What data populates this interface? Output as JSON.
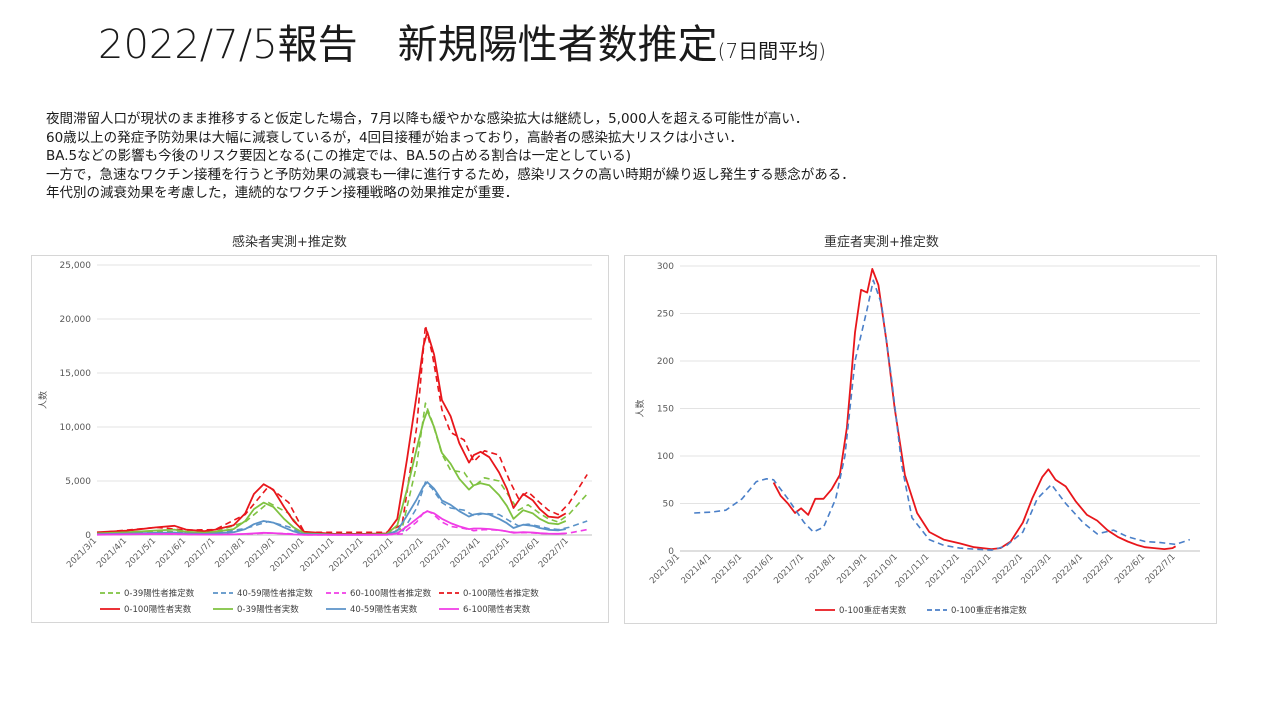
{
  "header": {
    "title": "2022/7/5報告　新規陽性者数推定",
    "title_suffix": "(7日間平均)"
  },
  "description": [
    "夜間滞留人口が現状のまま推移すると仮定した場合，7月以降も緩やかな感染拡大は継続し，5,000人を超える可能性が高い．",
    "60歳以上の発症予防効果は大幅に減衰しているが，4回目接種が始まっており，高齢者の感染拡大リスクは小さい．",
    "BA.5などの影響も今後のリスク要因となる(この推定では、BA.5の占める割合は一定としている)",
    "一方で，急速なワクチン接種を行うと予防効果の減衰も一律に進行するため，感染リスクの高い時期が繰り返し発生する懸念がある．",
    "年代別の減衰効果を考慮した，連続的なワクチン接種戦略の効果推定が重要．"
  ],
  "chart_data": [
    {
      "type": "line",
      "title": "感染者実測+推定数",
      "ylabel": "人数",
      "xlabel": "",
      "ylim": [
        0,
        25000
      ],
      "yticks": [
        "0",
        "5,000",
        "10,000",
        "15,000",
        "20,000",
        "25,000"
      ],
      "ytick_values": [
        0,
        5000,
        10000,
        15000,
        20000,
        25000
      ],
      "xticks": [
        "2021/3/1",
        "2021/4/1",
        "2021/5/1",
        "2021/6/1",
        "2021/7/1",
        "2021/8/1",
        "2021/9/1",
        "2021/10/1",
        "2021/11/1",
        "2021/12/1",
        "2022/1/1",
        "2022/2/1",
        "2022/3/1",
        "2022/4/1",
        "2022/5/1",
        "2022/6/1",
        "2022/7/1"
      ],
      "grid": true,
      "legend_position": "bottom",
      "colors": {
        "0-39": "#7fc241",
        "40-59": "#5b93c8",
        "60-100": "#f03ce6",
        "0-100": "#e8161b"
      },
      "series": [
        {
          "name": "0-39陽性者推定数",
          "color": "#7fc241",
          "dashed": true,
          "x": [
            "2021/3/1",
            "2021/5/1",
            "2021/6/1",
            "2021/7/1",
            "2021/8/1",
            "2021/8/25",
            "2021/9/15",
            "2021/10/1",
            "2021/12/25",
            "2022/1/10",
            "2022/1/25",
            "2022/2/3",
            "2022/2/10",
            "2022/2/20",
            "2022/3/1",
            "2022/3/15",
            "2022/3/25",
            "2022/4/5",
            "2022/4/20",
            "2022/5/1",
            "2022/5/10",
            "2022/5/20",
            "2022/6/1",
            "2022/6/10",
            "2022/6/20",
            "2022/7/1",
            "2022/7/20"
          ],
          "y": [
            120,
            350,
            250,
            300,
            1200,
            3000,
            2000,
            150,
            150,
            600,
            6500,
            12200,
            10500,
            7500,
            6000,
            5800,
            4500,
            5300,
            5000,
            3500,
            2300,
            2800,
            2000,
            1500,
            1200,
            1900,
            3800
          ]
        },
        {
          "name": "40-59陽性者推定数",
          "color": "#5b93c8",
          "dashed": true,
          "x": [
            "2021/3/1",
            "2021/5/1",
            "2021/6/1",
            "2021/7/1",
            "2021/8/1",
            "2021/8/25",
            "2021/9/15",
            "2021/10/1",
            "2021/12/25",
            "2022/1/10",
            "2022/1/25",
            "2022/2/3",
            "2022/2/10",
            "2022/2/20",
            "2022/3/1",
            "2022/3/15",
            "2022/3/25",
            "2022/4/5",
            "2022/4/20",
            "2022/5/1",
            "2022/5/10",
            "2022/5/20",
            "2022/6/1",
            "2022/6/10",
            "2022/6/20",
            "2022/7/1",
            "2022/7/20"
          ],
          "y": [
            60,
            180,
            140,
            170,
            600,
            1250,
            750,
            60,
            60,
            250,
            2500,
            4900,
            4300,
            3000,
            2500,
            2300,
            1800,
            2000,
            1900,
            1300,
            850,
            1000,
            800,
            600,
            500,
            700,
            1300
          ]
        },
        {
          "name": "60-100陽性者推定数",
          "color": "#f03ce6",
          "dashed": true,
          "x": [
            "2021/3/1",
            "2021/5/1",
            "2021/6/1",
            "2021/7/1",
            "2021/8/1",
            "2021/8/25",
            "2021/9/15",
            "2021/10/1",
            "2021/12/25",
            "2022/1/10",
            "2022/1/25",
            "2022/2/3",
            "2022/2/10",
            "2022/2/20",
            "2022/3/1",
            "2022/3/15",
            "2022/3/25",
            "2022/4/5",
            "2022/4/20",
            "2022/5/1",
            "2022/5/10",
            "2022/5/20",
            "2022/6/1",
            "2022/6/10",
            "2022/6/20",
            "2022/7/1",
            "2022/7/20"
          ],
          "y": [
            40,
            90,
            60,
            50,
            80,
            180,
            120,
            20,
            20,
            100,
            1200,
            2300,
            2000,
            1200,
            800,
            600,
            400,
            500,
            450,
            300,
            200,
            220,
            150,
            120,
            100,
            180,
            500
          ]
        },
        {
          "name": "0-100陽性者推定数",
          "color": "#e8161b",
          "dashed": true,
          "x": [
            "2021/3/1",
            "2021/5/1",
            "2021/6/1",
            "2021/7/1",
            "2021/8/1",
            "2021/8/25",
            "2021/9/15",
            "2021/10/1",
            "2021/12/25",
            "2022/1/10",
            "2022/1/25",
            "2022/2/3",
            "2022/2/10",
            "2022/2/20",
            "2022/3/1",
            "2022/3/15",
            "2022/3/25",
            "2022/4/5",
            "2022/4/20",
            "2022/5/1",
            "2022/5/10",
            "2022/5/20",
            "2022/6/1",
            "2022/6/10",
            "2022/6/20",
            "2022/7/1",
            "2022/7/20"
          ],
          "y": [
            200,
            700,
            450,
            500,
            1900,
            4500,
            3000,
            250,
            250,
            950,
            10000,
            19400,
            16800,
            11600,
            9500,
            8800,
            6800,
            7800,
            7400,
            5000,
            3400,
            4000,
            3000,
            2300,
            1900,
            2900,
            5600
          ]
        },
        {
          "name": "0-100陽性者実数",
          "color": "#e8161b",
          "dashed": false,
          "x": [
            "2021/3/1",
            "2021/4/1",
            "2021/5/1",
            "2021/5/20",
            "2021/6/1",
            "2021/6/20",
            "2021/7/1",
            "2021/7/20",
            "2021/8/1",
            "2021/8/10",
            "2021/8/20",
            "2021/8/30",
            "2021/9/10",
            "2021/9/20",
            "2021/10/1",
            "2021/11/1",
            "2021/12/1",
            "2021/12/25",
            "2022/1/5",
            "2022/1/15",
            "2022/1/25",
            "2022/2/1",
            "2022/2/5",
            "2022/2/12",
            "2022/2/20",
            "2022/3/1",
            "2022/3/10",
            "2022/3/20",
            "2022/3/25",
            "2022/4/1",
            "2022/4/10",
            "2022/4/20",
            "2022/4/28",
            "2022/5/5",
            "2022/5/15",
            "2022/5/25",
            "2022/6/1",
            "2022/6/10",
            "2022/6/20",
            "2022/6/28"
          ],
          "y": [
            250,
            400,
            700,
            850,
            500,
            350,
            500,
            900,
            2000,
            3800,
            4700,
            4200,
            2600,
            1300,
            300,
            100,
            100,
            150,
            1500,
            7000,
            13000,
            17500,
            18800,
            16700,
            12500,
            11000,
            8500,
            6700,
            7400,
            7700,
            7200,
            5800,
            4300,
            2500,
            3800,
            3200,
            2400,
            1700,
            1600,
            2000
          ]
        },
        {
          "name": "0-39陽性者実数",
          "color": "#7fc241",
          "dashed": false,
          "x": [
            "2021/3/1",
            "2021/4/1",
            "2021/5/1",
            "2021/5/20",
            "2021/6/1",
            "2021/6/20",
            "2021/7/1",
            "2021/7/20",
            "2021/8/1",
            "2021/8/10",
            "2021/8/20",
            "2021/8/30",
            "2021/9/10",
            "2021/9/20",
            "2021/10/1",
            "2021/11/1",
            "2021/12/1",
            "2021/12/25",
            "2022/1/5",
            "2022/1/15",
            "2022/1/25",
            "2022/2/1",
            "2022/2/5",
            "2022/2/12",
            "2022/2/20",
            "2022/3/1",
            "2022/3/10",
            "2022/3/20",
            "2022/3/25",
            "2022/4/1",
            "2022/4/10",
            "2022/4/20",
            "2022/4/28",
            "2022/5/5",
            "2022/5/15",
            "2022/5/25",
            "2022/6/1",
            "2022/6/10",
            "2022/6/20",
            "2022/6/28"
          ],
          "y": [
            150,
            250,
            420,
            500,
            300,
            200,
            300,
            550,
            1300,
            2400,
            3000,
            2600,
            1500,
            700,
            150,
            50,
            50,
            80,
            900,
            4200,
            8000,
            10500,
            11500,
            10000,
            7600,
            6600,
            5200,
            4200,
            4600,
            4800,
            4600,
            3700,
            2700,
            1500,
            2300,
            2000,
            1500,
            1100,
            1000,
            1300
          ]
        },
        {
          "name": "40-59陽性者実数",
          "color": "#5b93c8",
          "dashed": false,
          "x": [
            "2021/3/1",
            "2021/4/1",
            "2021/5/1",
            "2021/5/20",
            "2021/6/1",
            "2021/6/20",
            "2021/7/1",
            "2021/7/20",
            "2021/8/1",
            "2021/8/10",
            "2021/8/20",
            "2021/8/30",
            "2021/9/10",
            "2021/9/20",
            "2021/10/1",
            "2021/11/1",
            "2021/12/1",
            "2021/12/25",
            "2022/1/5",
            "2022/1/15",
            "2022/1/25",
            "2022/2/1",
            "2022/2/5",
            "2022/2/12",
            "2022/2/20",
            "2022/3/1",
            "2022/3/10",
            "2022/3/20",
            "2022/3/25",
            "2022/4/1",
            "2022/4/10",
            "2022/4/20",
            "2022/4/28",
            "2022/5/5",
            "2022/5/15",
            "2022/5/25",
            "2022/6/1",
            "2022/6/10",
            "2022/6/20",
            "2022/6/28"
          ],
          "y": [
            70,
            120,
            200,
            230,
            150,
            100,
            150,
            260,
            550,
            1000,
            1300,
            1150,
            700,
            330,
            70,
            25,
            25,
            40,
            400,
            1800,
            3300,
            4500,
            4900,
            4300,
            3200,
            2800,
            2200,
            1700,
            1900,
            2000,
            1900,
            1500,
            1100,
            650,
            950,
            850,
            650,
            480,
            430,
            550
          ]
        },
        {
          "name": "6-100陽性者実数",
          "color": "#f03ce6",
          "dashed": false,
          "x": [
            "2021/3/1",
            "2021/4/1",
            "2021/5/1",
            "2021/5/20",
            "2021/6/1",
            "2021/6/20",
            "2021/7/1",
            "2021/7/20",
            "2021/8/1",
            "2021/8/10",
            "2021/8/20",
            "2021/8/30",
            "2021/9/10",
            "2021/9/20",
            "2021/10/1",
            "2021/11/1",
            "2021/12/1",
            "2021/12/25",
            "2022/1/5",
            "2022/1/15",
            "2022/1/25",
            "2022/2/1",
            "2022/2/5",
            "2022/2/12",
            "2022/2/20",
            "2022/3/1",
            "2022/3/10",
            "2022/3/20",
            "2022/3/25",
            "2022/4/1",
            "2022/4/10",
            "2022/4/20",
            "2022/4/28",
            "2022/5/5",
            "2022/5/15",
            "2022/5/25",
            "2022/6/1",
            "2022/6/10",
            "2022/6/20",
            "2022/6/28"
          ],
          "y": [
            30,
            60,
            90,
            100,
            60,
            40,
            40,
            60,
            100,
            150,
            200,
            180,
            110,
            60,
            15,
            5,
            5,
            10,
            150,
            800,
            1500,
            2000,
            2200,
            2000,
            1500,
            1100,
            800,
            550,
            600,
            600,
            560,
            450,
            330,
            200,
            260,
            230,
            170,
            130,
            110,
            150
          ]
        }
      ]
    },
    {
      "type": "line",
      "title": "重症者実測+推定数",
      "ylabel": "人数",
      "xlabel": "",
      "ylim": [
        0,
        300
      ],
      "yticks": [
        "0",
        "50",
        "100",
        "150",
        "200",
        "250",
        "300"
      ],
      "ytick_values": [
        0,
        50,
        100,
        150,
        200,
        250,
        300
      ],
      "xticks": [
        "2021/3/1",
        "2021/4/1",
        "2021/5/1",
        "2021/6/1",
        "2021/7/1",
        "2021/8/1",
        "2021/9/1",
        "2021/10/1",
        "2021/11/1",
        "2021/12/1",
        "2022/1/1",
        "2022/2/1",
        "2022/3/1",
        "2022/4/1",
        "2022/5/1",
        "2022/6/1",
        "2022/7/1"
      ],
      "grid": true,
      "legend_position": "bottom",
      "series": [
        {
          "name": "0-100重症者実数",
          "color": "#e8161b",
          "dashed": false,
          "x": [
            "2021/6/1",
            "2021/6/8",
            "2021/6/15",
            "2021/6/22",
            "2021/6/28",
            "2021/7/5",
            "2021/7/12",
            "2021/7/20",
            "2021/7/28",
            "2021/8/5",
            "2021/8/12",
            "2021/8/20",
            "2021/8/26",
            "2021/9/1",
            "2021/9/6",
            "2021/9/12",
            "2021/9/20",
            "2021/9/28",
            "2021/10/8",
            "2021/10/20",
            "2021/11/1",
            "2021/11/15",
            "2021/12/1",
            "2021/12/15",
            "2022/1/1",
            "2022/1/10",
            "2022/1/20",
            "2022/2/1",
            "2022/2/10",
            "2022/2/20",
            "2022/2/26",
            "2022/3/5",
            "2022/3/15",
            "2022/3/25",
            "2022/4/5",
            "2022/4/15",
            "2022/4/25",
            "2022/5/5",
            "2022/5/15",
            "2022/5/25",
            "2022/6/1",
            "2022/6/10",
            "2022/6/20",
            "2022/6/28",
            "2022/7/1"
          ],
          "y": [
            72,
            58,
            50,
            40,
            45,
            38,
            55,
            55,
            65,
            80,
            130,
            230,
            275,
            272,
            297,
            280,
            220,
            150,
            80,
            40,
            20,
            12,
            8,
            4,
            2,
            3,
            10,
            30,
            55,
            78,
            86,
            75,
            68,
            52,
            38,
            32,
            22,
            15,
            10,
            6,
            4,
            3,
            2,
            3,
            5
          ]
        },
        {
          "name": "0-100重症者推定数",
          "color": "#4a7fc8",
          "dashed": true,
          "x": [
            "2021/3/15",
            "2021/4/1",
            "2021/4/15",
            "2021/5/1",
            "2021/5/15",
            "2021/5/25",
            "2021/6/1",
            "2021/6/15",
            "2021/7/1",
            "2021/7/10",
            "2021/7/20",
            "2021/8/1",
            "2021/8/10",
            "2021/8/20",
            "2021/9/1",
            "2021/9/7",
            "2021/9/15",
            "2021/9/25",
            "2021/10/5",
            "2021/10/15",
            "2021/11/1",
            "2021/11/15",
            "2021/12/1",
            "2021/12/15",
            "2022/1/1",
            "2022/1/15",
            "2022/2/1",
            "2022/2/15",
            "2022/3/1",
            "2022/3/15",
            "2022/4/1",
            "2022/4/15",
            "2022/5/1",
            "2022/5/15",
            "2022/6/1",
            "2022/6/15",
            "2022/7/1",
            "2022/7/15"
          ],
          "y": [
            40,
            41,
            43,
            55,
            73,
            76,
            75,
            55,
            30,
            20,
            25,
            55,
            100,
            200,
            255,
            285,
            260,
            180,
            90,
            35,
            12,
            6,
            3,
            2,
            1,
            5,
            20,
            55,
            70,
            50,
            30,
            18,
            22,
            15,
            10,
            9,
            7,
            12
          ]
        }
      ]
    }
  ]
}
